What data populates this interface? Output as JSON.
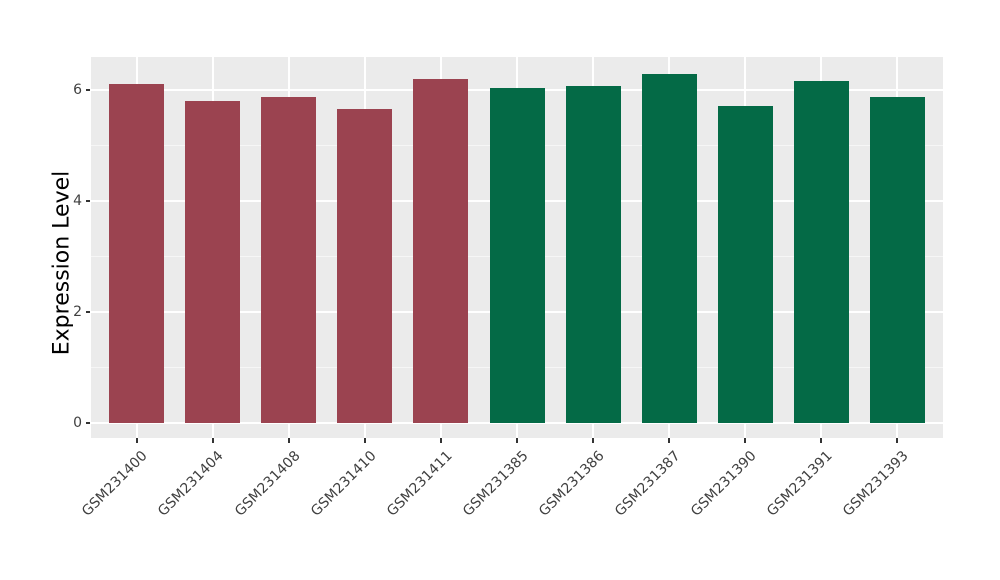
{
  "chart_data": {
    "type": "bar",
    "title": "",
    "xlabel": "",
    "ylabel": "Expression Level",
    "ylim": [
      0,
      6.6
    ],
    "yticks": [
      0,
      2,
      4,
      6
    ],
    "yticks_minor": [
      1,
      3,
      5
    ],
    "grid": "on",
    "legend": "none",
    "panel_background": "#EBEBEB",
    "grid_color": "#FFFFFF",
    "tick_mark_color": "#333333",
    "tick_label_color": "#404040",
    "axis_title_color": "#000000",
    "group_colors": {
      "left_group": "#9B4350",
      "right_group": "#046A46"
    },
    "categories": [
      "GSM231400",
      "GSM231404",
      "GSM231408",
      "GSM231410",
      "GSM231411",
      "GSM231385",
      "GSM231386",
      "GSM231387",
      "GSM231390",
      "GSM231391",
      "GSM231393"
    ],
    "values": [
      6.11,
      5.81,
      5.88,
      5.66,
      6.19,
      6.03,
      6.07,
      6.29,
      5.72,
      6.17,
      5.88
    ],
    "bar_colors": [
      "#9B4350",
      "#9B4350",
      "#9B4350",
      "#9B4350",
      "#9B4350",
      "#046A46",
      "#046A46",
      "#046A46",
      "#046A46",
      "#046A46",
      "#046A46"
    ]
  }
}
